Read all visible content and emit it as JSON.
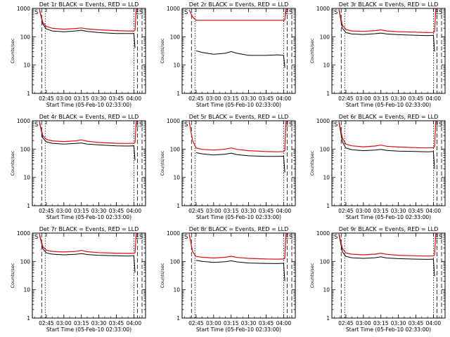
{
  "chart_data": [
    {
      "type": "line",
      "title": "Det 1r BLACK = Events, RED = LLD",
      "xlabel": "Start Time (05-Feb-10 02:33:00)",
      "ylabel": "Counts/sec",
      "x_tick_labels": [
        "02:45",
        "03:00",
        "03:15",
        "03:30",
        "03:45",
        "04:00"
      ],
      "y_tick_labels": [
        "1",
        "10",
        "100",
        "1000"
      ],
      "ylim": [
        1,
        1000
      ],
      "y_scale": "log",
      "corner_markers": [
        "S",
        "E",
        "S"
      ],
      "series": [
        {
          "name": "Events",
          "color": "#000000",
          "x": [
            "02:39",
            "02:42",
            "02:45",
            "02:50",
            "03:00",
            "03:10",
            "03:15",
            "03:20",
            "03:30",
            "03:45",
            "03:55",
            "04:00",
            "04:01"
          ],
          "values": [
            900,
            280,
            190,
            160,
            150,
            160,
            170,
            155,
            140,
            130,
            130,
            130,
            40
          ]
        },
        {
          "name": "LLD",
          "color": "#d81010",
          "x": [
            "02:39",
            "02:42",
            "02:45",
            "02:50",
            "03:00",
            "03:10",
            "03:15",
            "03:20",
            "03:30",
            "03:45",
            "03:55",
            "04:00",
            "04:01",
            "04:02"
          ],
          "values": [
            950,
            320,
            230,
            200,
            185,
            195,
            205,
            190,
            175,
            165,
            160,
            160,
            170,
            1000
          ]
        }
      ]
    },
    {
      "type": "line",
      "title": "Det 2r BLACK = Events, RED = LLD",
      "xlabel": "Start Time (05-Feb-10 02:33:00)",
      "ylabel": "Counts/sec",
      "x_tick_labels": [
        "02:45",
        "03:00",
        "03:15",
        "03:30",
        "03:45",
        "04:00"
      ],
      "y_tick_labels": [
        "1",
        "10",
        "100",
        "1000"
      ],
      "ylim": [
        1,
        1000
      ],
      "y_scale": "log",
      "corner_markers": [
        "S",
        "E",
        "S"
      ],
      "series": [
        {
          "name": "Events",
          "color": "#000000",
          "x": [
            "02:45",
            "02:50",
            "03:00",
            "03:10",
            "03:15",
            "03:20",
            "03:30",
            "03:45",
            "03:55",
            "04:00",
            "04:01"
          ],
          "values": [
            32,
            28,
            24,
            26,
            30,
            26,
            22,
            22,
            23,
            22,
            8
          ]
        },
        {
          "name": "LLD",
          "color": "#d81010",
          "x": [
            "02:39",
            "02:42",
            "02:45",
            "03:00",
            "03:15",
            "03:30",
            "03:45",
            "04:00",
            "04:01",
            "04:02"
          ],
          "values": [
            900,
            500,
            380,
            380,
            380,
            380,
            380,
            380,
            390,
            1000
          ]
        }
      ]
    },
    {
      "type": "line",
      "title": "Det 3r BLACK = Events, RED = LLD",
      "xlabel": "Start Time (05-Feb-10 02:33:00)",
      "ylabel": "Counts/sec",
      "x_tick_labels": [
        "02:45",
        "03:00",
        "03:15",
        "03:30",
        "03:45",
        "04:00"
      ],
      "y_tick_labels": [
        "1",
        "10",
        "100",
        "1000"
      ],
      "ylim": [
        1,
        1000
      ],
      "y_scale": "log",
      "corner_markers": [
        "S",
        "E",
        "S"
      ],
      "series": [
        {
          "name": "Events",
          "color": "#000000",
          "x": [
            "02:39",
            "02:42",
            "02:45",
            "02:50",
            "03:00",
            "03:10",
            "03:15",
            "03:20",
            "03:30",
            "03:45",
            "03:55",
            "04:00",
            "04:01"
          ],
          "values": [
            900,
            200,
            140,
            125,
            120,
            128,
            135,
            125,
            118,
            112,
            110,
            112,
            30
          ]
        },
        {
          "name": "LLD",
          "color": "#d81010",
          "x": [
            "02:39",
            "02:42",
            "02:45",
            "02:50",
            "03:00",
            "03:10",
            "03:15",
            "03:20",
            "03:30",
            "03:45",
            "03:55",
            "04:00",
            "04:01",
            "04:02"
          ],
          "values": [
            950,
            260,
            180,
            160,
            155,
            165,
            175,
            160,
            150,
            145,
            140,
            142,
            150,
            1000
          ]
        }
      ]
    },
    {
      "type": "line",
      "title": "Det 4r BLACK = Events, RED = LLD",
      "xlabel": "Start Time (05-Feb-10 02:33:00)",
      "ylabel": "Counts/sec",
      "x_tick_labels": [
        "02:45",
        "03:00",
        "03:15",
        "03:30",
        "03:45",
        "04:00"
      ],
      "y_tick_labels": [
        "1",
        "10",
        "100",
        "1000"
      ],
      "ylim": [
        1,
        1000
      ],
      "y_scale": "log",
      "corner_markers": [
        "S",
        "E",
        "S"
      ],
      "series": [
        {
          "name": "Events",
          "color": "#000000",
          "x": [
            "02:39",
            "02:42",
            "02:45",
            "02:50",
            "03:00",
            "03:10",
            "03:15",
            "03:20",
            "03:30",
            "03:45",
            "03:55",
            "04:00",
            "04:01"
          ],
          "values": [
            900,
            250,
            180,
            160,
            150,
            158,
            165,
            150,
            140,
            130,
            128,
            130,
            40
          ]
        },
        {
          "name": "LLD",
          "color": "#d81010",
          "x": [
            "02:39",
            "02:42",
            "02:45",
            "02:50",
            "03:00",
            "03:10",
            "03:15",
            "03:20",
            "03:30",
            "03:45",
            "03:55",
            "04:00",
            "04:01",
            "04:02"
          ],
          "values": [
            950,
            300,
            220,
            195,
            185,
            195,
            210,
            190,
            170,
            160,
            158,
            160,
            170,
            1000
          ]
        }
      ]
    },
    {
      "type": "line",
      "title": "Det 5r BLACK = Events, RED = LLD",
      "xlabel": "Start Time (05-Feb-10 02:33:00)",
      "ylabel": "Counts/sec",
      "x_tick_labels": [
        "02:45",
        "03:00",
        "03:15",
        "03:30",
        "03:45",
        "04:00"
      ],
      "y_tick_labels": [
        "1",
        "10",
        "100",
        "1000"
      ],
      "ylim": [
        1,
        1000
      ],
      "y_scale": "log",
      "corner_markers": [
        "S",
        "E",
        "S"
      ],
      "series": [
        {
          "name": "Events",
          "color": "#000000",
          "x": [
            "02:45",
            "02:50",
            "03:00",
            "03:10",
            "03:15",
            "03:20",
            "03:30",
            "03:45",
            "03:55",
            "04:00",
            "04:01"
          ],
          "values": [
            75,
            68,
            62,
            66,
            72,
            64,
            58,
            55,
            55,
            56,
            15
          ]
        },
        {
          "name": "LLD",
          "color": "#d81010",
          "x": [
            "02:39",
            "02:42",
            "02:45",
            "02:50",
            "03:00",
            "03:10",
            "03:15",
            "03:20",
            "03:30",
            "03:45",
            "03:55",
            "04:00",
            "04:01",
            "04:02"
          ],
          "values": [
            950,
            200,
            110,
            98,
            92,
            100,
            110,
            98,
            88,
            82,
            80,
            82,
            90,
            1000
          ]
        }
      ]
    },
    {
      "type": "line",
      "title": "Det 6r BLACK = Events, RED = LLD",
      "xlabel": "Start Time (05-Feb-10 02:33:00)",
      "ylabel": "Counts/sec",
      "x_tick_labels": [
        "02:45",
        "03:00",
        "03:15",
        "03:30",
        "03:45",
        "04:00"
      ],
      "y_tick_labels": [
        "1",
        "10",
        "100",
        "1000"
      ],
      "ylim": [
        1,
        1000
      ],
      "y_scale": "log",
      "corner_markers": [
        "S",
        "E",
        "S"
      ],
      "series": [
        {
          "name": "Events",
          "color": "#000000",
          "x": [
            "02:39",
            "02:42",
            "02:45",
            "02:50",
            "03:00",
            "03:10",
            "03:15",
            "03:20",
            "03:30",
            "03:45",
            "03:55",
            "04:00",
            "04:01"
          ],
          "values": [
            900,
            180,
            110,
            95,
            88,
            92,
            98,
            90,
            85,
            82,
            80,
            82,
            20
          ]
        },
        {
          "name": "LLD",
          "color": "#d81010",
          "x": [
            "02:39",
            "02:42",
            "02:45",
            "02:50",
            "03:00",
            "03:10",
            "03:15",
            "03:20",
            "03:30",
            "03:45",
            "03:55",
            "04:00",
            "04:01",
            "04:02"
          ],
          "values": [
            950,
            250,
            150,
            130,
            120,
            128,
            138,
            126,
            118,
            112,
            110,
            112,
            120,
            1000
          ]
        }
      ]
    },
    {
      "type": "line",
      "title": "Det 7r BLACK = Events, RED = LLD",
      "xlabel": "Start Time (05-Feb-10 02:33:00)",
      "ylabel": "Counts/sec",
      "x_tick_labels": [
        "02:45",
        "03:00",
        "03:15",
        "03:30",
        "03:45",
        "04:00"
      ],
      "y_tick_labels": [
        "1",
        "10",
        "100",
        "1000"
      ],
      "ylim": [
        1,
        1000
      ],
      "y_scale": "log",
      "corner_markers": [
        "S",
        "E",
        "S"
      ],
      "series": [
        {
          "name": "Events",
          "color": "#000000",
          "x": [
            "02:39",
            "02:42",
            "02:45",
            "02:50",
            "03:00",
            "03:10",
            "03:15",
            "03:20",
            "03:30",
            "03:45",
            "03:55",
            "04:00",
            "04:01"
          ],
          "values": [
            900,
            280,
            200,
            180,
            170,
            178,
            190,
            175,
            165,
            158,
            155,
            160,
            40
          ]
        },
        {
          "name": "LLD",
          "color": "#d81010",
          "x": [
            "02:39",
            "02:42",
            "02:45",
            "02:50",
            "03:00",
            "03:10",
            "03:15",
            "03:20",
            "03:30",
            "03:45",
            "03:55",
            "04:00",
            "04:01",
            "04:02"
          ],
          "values": [
            950,
            330,
            250,
            225,
            215,
            225,
            245,
            220,
            205,
            195,
            192,
            195,
            205,
            1000
          ]
        }
      ]
    },
    {
      "type": "line",
      "title": "Det 8r BLACK = Events, RED = LLD",
      "xlabel": "Start Time (05-Feb-10 02:33:00)",
      "ylabel": "Counts/sec",
      "x_tick_labels": [
        "02:45",
        "03:00",
        "03:15",
        "03:30",
        "03:45",
        "04:00"
      ],
      "y_tick_labels": [
        "1",
        "10",
        "100",
        "1000"
      ],
      "ylim": [
        1,
        1000
      ],
      "y_scale": "log",
      "corner_markers": [
        "S",
        "E",
        "S"
      ],
      "series": [
        {
          "name": "Events",
          "color": "#000000",
          "x": [
            "02:45",
            "02:50",
            "03:00",
            "03:10",
            "03:15",
            "03:20",
            "03:30",
            "03:45",
            "03:55",
            "04:00",
            "04:01"
          ],
          "values": [
            110,
            100,
            92,
            98,
            105,
            96,
            88,
            85,
            84,
            86,
            20
          ]
        },
        {
          "name": "LLD",
          "color": "#d81010",
          "x": [
            "02:39",
            "02:42",
            "02:45",
            "02:50",
            "03:00",
            "03:10",
            "03:15",
            "03:20",
            "03:30",
            "03:45",
            "03:55",
            "04:00",
            "04:01",
            "04:02"
          ],
          "values": [
            950,
            220,
            150,
            140,
            132,
            140,
            152,
            138,
            128,
            122,
            120,
            122,
            130,
            1000
          ]
        }
      ]
    },
    {
      "type": "line",
      "title": "Det 9r BLACK = Events, RED = LLD",
      "xlabel": "Start Time (05-Feb-10 02:33:00)",
      "ylabel": "Counts/sec",
      "x_tick_labels": [
        "02:45",
        "03:00",
        "03:15",
        "03:30",
        "03:45",
        "04:00"
      ],
      "y_tick_labels": [
        "1",
        "10",
        "100",
        "1000"
      ],
      "ylim": [
        1,
        1000
      ],
      "y_scale": "log",
      "corner_markers": [
        "S",
        "E",
        "S"
      ],
      "series": [
        {
          "name": "Events",
          "color": "#000000",
          "x": [
            "02:39",
            "02:42",
            "02:45",
            "02:50",
            "03:00",
            "03:10",
            "03:15",
            "03:20",
            "03:30",
            "03:45",
            "03:55",
            "04:00",
            "04:01"
          ],
          "values": [
            900,
            220,
            150,
            135,
            128,
            135,
            145,
            132,
            125,
            120,
            118,
            120,
            30
          ]
        },
        {
          "name": "LLD",
          "color": "#d81010",
          "x": [
            "02:39",
            "02:42",
            "02:45",
            "02:50",
            "03:00",
            "03:10",
            "03:15",
            "03:20",
            "03:30",
            "03:45",
            "03:55",
            "04:00",
            "04:01",
            "04:02"
          ],
          "values": [
            950,
            290,
            200,
            180,
            170,
            180,
            195,
            178,
            165,
            158,
            155,
            158,
            168,
            1000
          ]
        }
      ]
    }
  ]
}
